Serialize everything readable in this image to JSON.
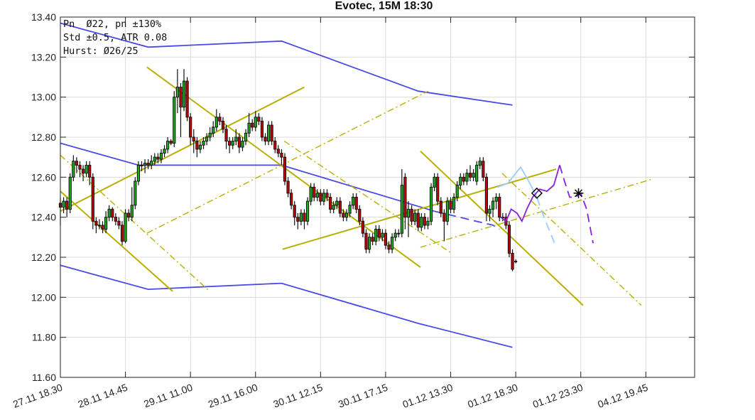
{
  "chart_data": {
    "type": "candlestick",
    "title": "Evotec, 15M 18:30",
    "info_lines": [
      "Pn  Ø22, pn ±130%",
      "Std ±0.5, ATR 0.08",
      "Hurst: Ø26/25"
    ],
    "xlim": [
      0,
      195
    ],
    "ylim": [
      11.6,
      13.4
    ],
    "yticks": [
      "11.60",
      "11.80",
      "12.00",
      "12.20",
      "12.40",
      "12.60",
      "12.80",
      "13.00",
      "13.20",
      "13.40"
    ],
    "xticks": [
      {
        "bar": 0,
        "label": "27.11 18.30"
      },
      {
        "bar": 20,
        "label": "28.11 14.45"
      },
      {
        "bar": 40,
        "label": "29.11 11.00"
      },
      {
        "bar": 60,
        "label": "29.11 16.00"
      },
      {
        "bar": 80,
        "label": "30.11 12.15"
      },
      {
        "bar": 100,
        "label": "30.11 17.15"
      },
      {
        "bar": 120,
        "label": "01.12 13.30"
      },
      {
        "bar": 140,
        "label": "01.12 18.30"
      },
      {
        "bar": 160,
        "label": "01.12 23.30"
      },
      {
        "bar": 180,
        "label": "04.12 19.45"
      }
    ],
    "grid": true,
    "colors": {
      "up": "#19b019",
      "down": "#cc0000",
      "band": "#4a4ae8",
      "trend": "#b8b000",
      "forecast_a": "#99ccff",
      "forecast_b": "#8a1ee0"
    },
    "ohlc": [
      [
        12.47,
        12.5,
        12.36,
        12.45
      ],
      [
        12.45,
        12.5,
        12.42,
        12.48
      ],
      [
        12.48,
        12.5,
        12.4,
        12.44
      ],
      [
        12.44,
        12.62,
        12.42,
        12.6
      ],
      [
        12.6,
        12.71,
        12.58,
        12.68
      ],
      [
        12.68,
        12.7,
        12.62,
        12.66
      ],
      [
        12.66,
        12.68,
        12.6,
        12.64
      ],
      [
        12.64,
        12.66,
        12.58,
        12.62
      ],
      [
        12.62,
        12.68,
        12.6,
        12.66
      ],
      [
        12.66,
        12.68,
        12.56,
        12.6
      ],
      [
        12.6,
        12.62,
        12.34,
        12.38
      ],
      [
        12.38,
        12.4,
        12.32,
        12.36
      ],
      [
        12.36,
        12.39,
        12.34,
        12.36
      ],
      [
        12.36,
        12.38,
        12.32,
        12.34
      ],
      [
        12.34,
        12.43,
        12.32,
        12.4
      ],
      [
        12.4,
        12.46,
        12.38,
        12.44
      ],
      [
        12.44,
        12.45,
        12.38,
        12.4
      ],
      [
        12.4,
        12.42,
        12.36,
        12.38
      ],
      [
        12.38,
        12.4,
        12.34,
        12.36
      ],
      [
        12.36,
        12.38,
        12.26,
        12.28
      ],
      [
        12.28,
        12.44,
        12.27,
        12.42
      ],
      [
        12.42,
        12.44,
        12.38,
        12.4
      ],
      [
        12.4,
        12.55,
        12.38,
        12.46
      ],
      [
        12.46,
        12.6,
        12.44,
        12.58
      ],
      [
        12.58,
        12.68,
        12.56,
        12.66
      ],
      [
        12.66,
        12.68,
        12.63,
        12.66
      ],
      [
        12.66,
        12.69,
        12.62,
        12.67
      ],
      [
        12.67,
        12.69,
        12.64,
        12.66
      ],
      [
        12.66,
        12.71,
        12.64,
        12.68
      ],
      [
        12.68,
        12.72,
        12.66,
        12.7
      ],
      [
        12.7,
        12.72,
        12.67,
        12.69
      ],
      [
        12.69,
        12.74,
        12.67,
        12.72
      ],
      [
        12.72,
        12.76,
        12.7,
        12.74
      ],
      [
        12.74,
        12.8,
        12.72,
        12.78
      ],
      [
        12.78,
        12.79,
        12.76,
        12.77
      ],
      [
        12.77,
        13.03,
        12.75,
        13.0
      ],
      [
        13.0,
        13.14,
        12.92,
        13.05
      ],
      [
        13.05,
        13.07,
        12.8,
        12.95
      ],
      [
        12.95,
        13.14,
        12.93,
        13.08
      ],
      [
        13.08,
        13.1,
        12.88,
        12.9
      ],
      [
        12.9,
        12.92,
        12.76,
        12.8
      ],
      [
        12.8,
        12.84,
        12.72,
        12.78
      ],
      [
        12.78,
        12.8,
        12.7,
        12.74
      ],
      [
        12.74,
        12.78,
        12.72,
        12.76
      ],
      [
        12.76,
        12.8,
        12.74,
        12.78
      ],
      [
        12.78,
        12.82,
        12.76,
        12.8
      ],
      [
        12.8,
        12.85,
        12.78,
        12.82
      ],
      [
        12.82,
        12.88,
        12.8,
        12.85
      ],
      [
        12.85,
        12.94,
        12.83,
        12.9
      ],
      [
        12.9,
        12.92,
        12.86,
        12.88
      ],
      [
        12.88,
        12.9,
        12.82,
        12.84
      ],
      [
        12.84,
        12.86,
        12.74,
        12.78
      ],
      [
        12.78,
        12.8,
        12.72,
        12.76
      ],
      [
        12.76,
        12.8,
        12.74,
        12.78
      ],
      [
        12.78,
        12.84,
        12.76,
        12.8
      ],
      [
        12.8,
        12.82,
        12.72,
        12.75
      ],
      [
        12.75,
        12.8,
        12.73,
        12.78
      ],
      [
        12.78,
        12.84,
        12.76,
        12.82
      ],
      [
        12.82,
        12.92,
        12.8,
        12.87
      ],
      [
        12.87,
        12.89,
        12.83,
        12.85
      ],
      [
        12.85,
        12.93,
        12.83,
        12.9
      ],
      [
        12.9,
        12.92,
        12.86,
        12.88
      ],
      [
        12.88,
        12.9,
        12.78,
        12.8
      ],
      [
        12.8,
        12.82,
        12.76,
        12.78
      ],
      [
        12.78,
        12.88,
        12.76,
        12.86
      ],
      [
        12.86,
        12.88,
        12.76,
        12.78
      ],
      [
        12.78,
        12.8,
        12.72,
        12.74
      ],
      [
        12.74,
        12.76,
        12.7,
        12.72
      ],
      [
        12.72,
        12.74,
        12.66,
        12.7
      ],
      [
        12.7,
        12.72,
        12.56,
        12.58
      ],
      [
        12.58,
        12.6,
        12.5,
        12.52
      ],
      [
        12.52,
        12.54,
        12.44,
        12.46
      ],
      [
        12.46,
        12.48,
        12.36,
        12.4
      ],
      [
        12.4,
        12.42,
        12.34,
        12.38
      ],
      [
        12.38,
        12.44,
        12.36,
        12.42
      ],
      [
        12.42,
        12.44,
        12.34,
        12.38
      ],
      [
        12.38,
        12.5,
        12.36,
        12.48
      ],
      [
        12.48,
        12.57,
        12.46,
        12.55
      ],
      [
        12.55,
        12.57,
        12.48,
        12.5
      ],
      [
        12.5,
        12.54,
        12.48,
        12.52
      ],
      [
        12.52,
        12.54,
        12.46,
        12.48
      ],
      [
        12.48,
        12.54,
        12.46,
        12.52
      ],
      [
        12.52,
        12.54,
        12.48,
        12.5
      ],
      [
        12.5,
        12.52,
        12.42,
        12.44
      ],
      [
        12.44,
        12.48,
        12.42,
        12.46
      ],
      [
        12.46,
        12.5,
        12.44,
        12.48
      ],
      [
        12.48,
        12.5,
        12.4,
        12.42
      ],
      [
        12.42,
        12.44,
        12.38,
        12.4
      ],
      [
        12.4,
        12.44,
        12.38,
        12.42
      ],
      [
        12.42,
        12.48,
        12.4,
        12.46
      ],
      [
        12.46,
        12.52,
        12.44,
        12.5
      ],
      [
        12.5,
        12.52,
        12.42,
        12.44
      ],
      [
        12.44,
        12.46,
        12.36,
        12.38
      ],
      [
        12.38,
        12.4,
        12.3,
        12.32
      ],
      [
        12.32,
        12.34,
        12.22,
        12.24
      ],
      [
        12.24,
        12.32,
        12.22,
        12.3
      ],
      [
        12.3,
        12.32,
        12.26,
        12.28
      ],
      [
        12.28,
        12.36,
        12.26,
        12.34
      ],
      [
        12.34,
        12.36,
        12.28,
        12.3
      ],
      [
        12.3,
        12.34,
        12.28,
        12.32
      ],
      [
        12.32,
        12.34,
        12.24,
        12.26
      ],
      [
        12.26,
        12.28,
        12.22,
        12.24
      ],
      [
        12.24,
        12.32,
        12.22,
        12.3
      ],
      [
        12.3,
        12.34,
        12.28,
        12.32
      ],
      [
        12.32,
        12.34,
        12.3,
        12.32
      ],
      [
        12.32,
        12.64,
        12.3,
        12.56
      ],
      [
        12.6,
        12.62,
        12.34,
        12.4
      ],
      [
        12.4,
        12.48,
        12.3,
        12.44
      ],
      [
        12.44,
        12.46,
        12.36,
        12.38
      ],
      [
        12.38,
        12.44,
        12.36,
        12.42
      ],
      [
        12.42,
        12.44,
        12.33,
        12.35
      ],
      [
        12.35,
        12.42,
        12.33,
        12.4
      ],
      [
        12.4,
        12.42,
        12.34,
        12.36
      ],
      [
        12.36,
        12.4,
        12.34,
        12.38
      ],
      [
        12.38,
        12.57,
        12.36,
        12.55
      ],
      [
        12.55,
        12.62,
        12.53,
        12.6
      ],
      [
        12.6,
        12.62,
        12.46,
        12.48
      ],
      [
        12.48,
        12.5,
        12.4,
        12.42
      ],
      [
        12.42,
        12.44,
        12.28,
        12.38
      ],
      [
        12.38,
        12.5,
        12.36,
        12.48
      ],
      [
        12.48,
        12.5,
        12.42,
        12.44
      ],
      [
        12.44,
        12.52,
        12.42,
        12.5
      ],
      [
        12.5,
        12.58,
        12.48,
        12.56
      ],
      [
        12.56,
        12.62,
        12.54,
        12.6
      ],
      [
        12.6,
        12.62,
        12.56,
        12.58
      ],
      [
        12.58,
        12.64,
        12.56,
        12.62
      ],
      [
        12.62,
        12.66,
        12.58,
        12.6
      ],
      [
        12.6,
        12.64,
        12.58,
        12.62
      ],
      [
        12.58,
        12.68,
        12.56,
        12.66
      ],
      [
        12.66,
        12.7,
        12.64,
        12.68
      ],
      [
        12.68,
        12.7,
        12.58,
        12.6
      ],
      [
        12.6,
        12.62,
        12.38,
        12.42
      ],
      [
        12.42,
        12.46,
        12.38,
        12.44
      ],
      [
        12.44,
        12.5,
        12.4,
        12.48
      ],
      [
        12.48,
        12.52,
        12.44,
        12.5
      ],
      [
        12.5,
        12.52,
        12.38,
        12.4
      ],
      [
        12.4,
        12.42,
        12.38,
        12.4
      ],
      [
        12.4,
        12.42,
        12.34,
        12.36
      ],
      [
        12.36,
        12.38,
        12.2,
        12.22
      ],
      [
        12.22,
        12.24,
        12.13,
        12.14
      ],
      [
        12.18,
        12.19,
        12.17,
        12.18
      ]
    ],
    "bands": [
      {
        "name": "upper",
        "style": "solid",
        "points": [
          [
            0,
            13.37
          ],
          [
            27,
            13.25
          ],
          [
            68,
            13.28
          ],
          [
            110,
            13.03
          ],
          [
            139,
            12.96
          ]
        ]
      },
      {
        "name": "lower",
        "style": "solid",
        "points": [
          [
            0,
            12.16
          ],
          [
            27,
            12.04
          ],
          [
            68,
            12.07
          ],
          [
            110,
            11.87
          ],
          [
            139,
            11.75
          ]
        ]
      },
      {
        "name": "middle",
        "style": "solid",
        "points": [
          [
            0,
            12.77
          ],
          [
            24,
            12.66
          ],
          [
            68,
            12.66
          ],
          [
            115,
            12.43
          ]
        ]
      },
      {
        "name": "middle-projection",
        "style": "dashed",
        "points": [
          [
            115,
            12.43
          ],
          [
            133,
            12.36
          ],
          [
            135,
            12.34
          ]
        ]
      }
    ],
    "trendlines": [
      {
        "style": "solid",
        "points": [
          [
            0,
            12.53
          ],
          [
            34.5,
            12.03
          ]
        ]
      },
      {
        "style": "solid",
        "points": [
          [
            0,
            12.43
          ],
          [
            75,
            13.05
          ]
        ]
      },
      {
        "style": "solid",
        "points": [
          [
            26.6,
            13.15
          ],
          [
            110.7,
            12.15
          ]
        ]
      },
      {
        "style": "solid",
        "points": [
          [
            68.3,
            12.24
          ],
          [
            152.4,
            12.64
          ]
        ]
      },
      {
        "style": "solid",
        "points": [
          [
            110.7,
            12.73
          ],
          [
            160.7,
            11.96
          ]
        ]
      },
      {
        "style": "dashdot",
        "points": [
          [
            0,
            12.71
          ],
          [
            45.9,
            12.03
          ]
        ]
      },
      {
        "style": "dashdot",
        "points": [
          [
            26.6,
            12.32
          ],
          [
            113.1,
            13.03
          ]
        ]
      },
      {
        "style": "dashdot",
        "points": [
          [
            68.8,
            12.78
          ],
          [
            120.3,
            12.22
          ]
        ]
      },
      {
        "style": "dashdot",
        "points": [
          [
            110.7,
            12.25
          ],
          [
            181.9,
            12.59
          ]
        ]
      },
      {
        "style": "dashdot",
        "points": [
          [
            135.8,
            12.62
          ],
          [
            178.6,
            11.96
          ]
        ]
      }
    ],
    "forecasts": [
      {
        "name": "forecast-a",
        "solid": [
          [
            134.3,
            12.55
          ],
          [
            137.6,
            12.57
          ],
          [
            141.5,
            12.65
          ],
          [
            144,
            12.58
          ],
          [
            146.5,
            12.5
          ]
        ],
        "dashed": [
          [
            146.5,
            12.5
          ],
          [
            148.7,
            12.4
          ],
          [
            150.7,
            12.32
          ],
          [
            152.2,
            12.26
          ]
        ]
      },
      {
        "name": "forecast-b",
        "solid": [
          [
            135.4,
            12.4
          ],
          [
            137,
            12.38
          ],
          [
            138.6,
            12.44
          ],
          [
            140.4,
            12.42
          ],
          [
            141.9,
            12.38
          ],
          [
            143.4,
            12.44
          ],
          [
            145.2,
            12.5
          ],
          [
            147.4,
            12.54
          ],
          [
            149.6,
            12.53
          ],
          [
            151.7,
            12.56
          ],
          [
            153.5,
            12.66
          ]
        ],
        "dashed": [
          [
            153.5,
            12.66
          ],
          [
            155,
            12.58
          ],
          [
            156.6,
            12.5
          ],
          [
            158.3,
            12.5
          ],
          [
            160,
            12.52
          ],
          [
            161.8,
            12.44
          ],
          [
            163.8,
            12.27
          ]
        ]
      }
    ],
    "markers": [
      {
        "type": "diamond",
        "bar": 146.5,
        "price": 12.52
      },
      {
        "type": "asterisk",
        "bar": 159.3,
        "price": 12.52
      }
    ]
  }
}
